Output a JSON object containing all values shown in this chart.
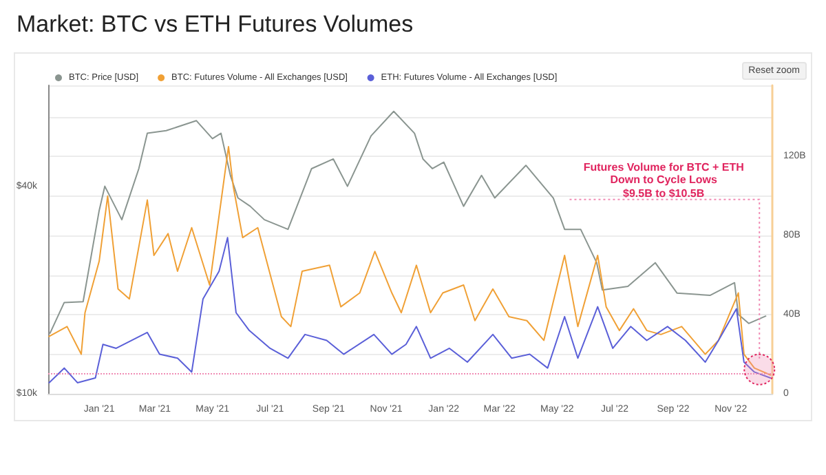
{
  "chart_data": {
    "type": "line",
    "title": "Market: BTC vs ETH Futures Volumes",
    "annotations": [
      "Futures Volume for BTC + ETH\nDown to Cycle Lows\n$9.5B to $10.5B",
      "Reset zoom"
    ],
    "xlim": [
      "2020-11-08",
      "2022-12-15"
    ],
    "xticks": [
      {
        "value": "2021-01-01",
        "label": "Jan '21"
      },
      {
        "value": "2021-03-01",
        "label": "Mar '21"
      },
      {
        "value": "2021-05-01",
        "label": "May '21"
      },
      {
        "value": "2021-07-01",
        "label": "Jul '21"
      },
      {
        "value": "2021-09-01",
        "label": "Sep '21"
      },
      {
        "value": "2021-11-01",
        "label": "Nov '21"
      },
      {
        "value": "2022-01-01",
        "label": "Jan '22"
      },
      {
        "value": "2022-03-01",
        "label": "Mar '22"
      },
      {
        "value": "2022-05-01",
        "label": "May '22"
      },
      {
        "value": "2022-07-01",
        "label": "Jul '22"
      },
      {
        "value": "2022-09-01",
        "label": "Sep '22"
      },
      {
        "value": "2022-11-01",
        "label": "Nov '22"
      }
    ],
    "log": "y",
    "ylim": [
      10000,
      78500
    ],
    "yticks": [
      {
        "value": 10000,
        "label": "$10k"
      },
      {
        "value": 40000,
        "label": "$40k"
      }
    ],
    "y2lim": [
      0,
      156
    ],
    "y2ticks": [
      {
        "value": 0,
        "label": "0"
      },
      {
        "value": 20,
        "label": null
      },
      {
        "value": 40,
        "label": "40B"
      },
      {
        "value": 60,
        "label": null
      },
      {
        "value": 80,
        "label": "80B"
      },
      {
        "value": 100,
        "label": null
      },
      {
        "value": 120,
        "label": "120B"
      },
      {
        "value": 140,
        "label": null
      }
    ],
    "grid": "y",
    "legend": "top left",
    "marker": "none",
    "line_style": "solid",
    "ref_lines": [
      {
        "axis": "y2",
        "value": 10,
        "label": null,
        "color": "#f08cb4",
        "line_style": "dotted"
      }
    ],
    "series": [
      {
        "name": "BTC: Price [USD]",
        "color": "#8a9590",
        "x": [
          "2020-11-10",
          "2020-11-25",
          "2020-12-15",
          "2021-01-01",
          "2021-01-07",
          "2021-01-25",
          "2021-02-12",
          "2021-02-21",
          "2021-03-13",
          "2021-04-14",
          "2021-05-01",
          "2021-05-10",
          "2021-05-20",
          "2021-05-28",
          "2021-06-10",
          "2021-06-25",
          "2021-07-20",
          "2021-08-14",
          "2021-09-06",
          "2021-09-21",
          "2021-10-16",
          "2021-11-09",
          "2021-12-01",
          "2021-12-10",
          "2021-12-20",
          "2022-01-01",
          "2022-01-22",
          "2022-02-10",
          "2022-02-24",
          "2022-03-29",
          "2022-04-27",
          "2022-05-09",
          "2022-05-26",
          "2022-06-12",
          "2022-06-18",
          "2022-07-15",
          "2022-08-13",
          "2022-09-05",
          "2022-10-10",
          "2022-11-05",
          "2022-11-09",
          "2022-11-20",
          "2022-12-08"
        ],
        "values": [
          15000,
          18400,
          18500,
          34000,
          40000,
          32000,
          45000,
          57000,
          58000,
          62000,
          55000,
          57000,
          43000,
          37000,
          35000,
          32000,
          30000,
          45000,
          48000,
          40000,
          56000,
          66000,
          57000,
          48000,
          45000,
          47000,
          35000,
          43000,
          37000,
          46000,
          37000,
          30000,
          30000,
          24000,
          20000,
          20500,
          24000,
          19600,
          19300,
          21000,
          17000,
          16000,
          16800
        ]
      },
      {
        "name": "BTC: Futures Volume - All Exchanges [USD]",
        "color": "#f0a035",
        "axis": "y2",
        "x": [
          "2020-11-09",
          "2020-11-28",
          "2020-12-13",
          "2020-12-17",
          "2021-01-01",
          "2021-01-10",
          "2021-01-21",
          "2021-02-02",
          "2021-02-21",
          "2021-02-28",
          "2021-03-15",
          "2021-03-25",
          "2021-04-09",
          "2021-04-28",
          "2021-05-18",
          "2021-05-23",
          "2021-06-02",
          "2021-06-18",
          "2021-07-13",
          "2021-07-23",
          "2021-08-04",
          "2021-09-02",
          "2021-09-14",
          "2021-10-04",
          "2021-10-20",
          "2021-11-07",
          "2021-11-17",
          "2021-12-03",
          "2021-12-18",
          "2021-12-31",
          "2022-01-22",
          "2022-02-03",
          "2022-02-22",
          "2022-03-11",
          "2022-03-30",
          "2022-04-17",
          "2022-05-09",
          "2022-05-23",
          "2022-06-13",
          "2022-06-22",
          "2022-07-06",
          "2022-07-21",
          "2022-08-04",
          "2022-08-19",
          "2022-09-10",
          "2022-10-05",
          "2022-10-19",
          "2022-11-09",
          "2022-11-15",
          "2022-11-26",
          "2022-12-13"
        ],
        "values": [
          29,
          34,
          20,
          41,
          67,
          100,
          53,
          48,
          98,
          70,
          81,
          62,
          84,
          55,
          125,
          105,
          79,
          84,
          39,
          34,
          62,
          65,
          44,
          51,
          72,
          51,
          41,
          65,
          41,
          51,
          55,
          37,
          53,
          39,
          37,
          27,
          70,
          34,
          70,
          44,
          32,
          43,
          32,
          30,
          34,
          20,
          27,
          51,
          20,
          13,
          9.5
        ]
      },
      {
        "name": "ETH: Futures Volume - All Exchanges [USD]",
        "color": "#5a5fd8",
        "axis": "y2",
        "x": [
          "2020-11-09",
          "2020-11-25",
          "2020-12-09",
          "2020-12-28",
          "2021-01-05",
          "2021-01-19",
          "2021-02-21",
          "2021-03-06",
          "2021-03-25",
          "2021-04-09",
          "2021-04-21",
          "2021-05-08",
          "2021-05-17",
          "2021-05-26",
          "2021-06-09",
          "2021-07-01",
          "2021-07-20",
          "2021-08-07",
          "2021-08-30",
          "2021-09-17",
          "2021-10-19",
          "2021-11-07",
          "2021-11-22",
          "2021-12-03",
          "2021-12-18",
          "2022-01-07",
          "2022-01-26",
          "2022-02-22",
          "2022-03-14",
          "2022-04-02",
          "2022-04-21",
          "2022-05-09",
          "2022-05-23",
          "2022-06-13",
          "2022-06-29",
          "2022-07-18",
          "2022-08-04",
          "2022-08-26",
          "2022-09-14",
          "2022-10-05",
          "2022-10-19",
          "2022-11-07",
          "2022-11-15",
          "2022-11-26",
          "2022-12-13"
        ],
        "values": [
          5.6,
          13,
          5.6,
          8,
          25,
          23,
          31,
          20,
          18,
          11,
          48,
          62,
          79,
          41,
          32,
          23,
          18,
          30,
          27,
          20,
          30,
          20,
          25,
          34,
          18,
          23,
          16,
          30,
          18,
          20,
          13,
          39,
          18,
          44,
          23,
          34,
          27,
          34,
          27,
          16,
          27,
          43,
          16,
          11,
          8
        ]
      }
    ]
  }
}
